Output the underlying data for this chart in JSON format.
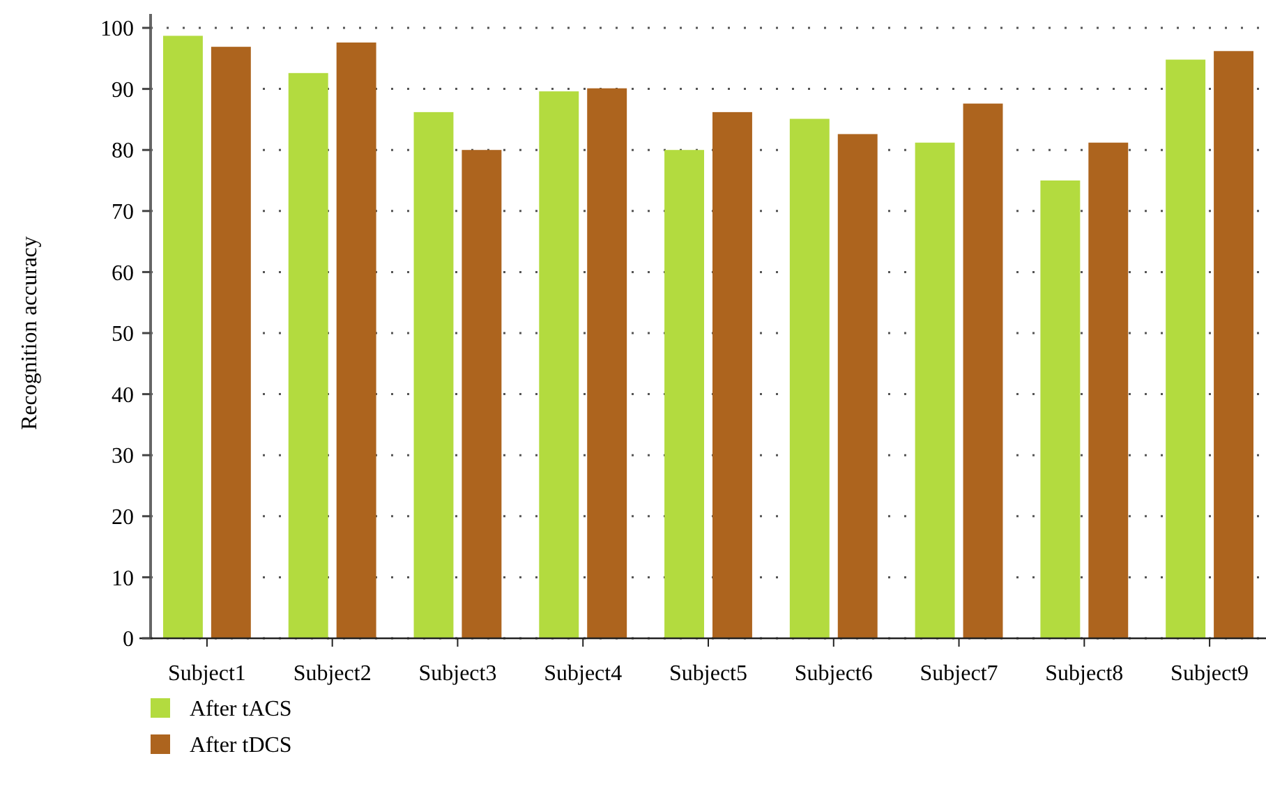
{
  "chart_data": {
    "type": "bar",
    "ylabel": "Recognition accuracy",
    "categories": [
      "Subject1",
      "Subject2",
      "Subject3",
      "Subject4",
      "Subject5",
      "Subject6",
      "Subject7",
      "Subject8",
      "Subject9"
    ],
    "series": [
      {
        "name": "After tACS",
        "color": "#b3db3f",
        "values": [
          98.7,
          92.6,
          86.2,
          89.6,
          80,
          85.1,
          81.2,
          75.0,
          94.8
        ]
      },
      {
        "name": "After tDCS",
        "color": "#ad641e",
        "values": [
          96.9,
          97.6,
          80,
          90.1,
          86.2,
          82.6,
          87.6,
          81.2,
          96.2
        ]
      }
    ],
    "ylim": [
      0,
      100
    ],
    "yticks": [
      0,
      10,
      20,
      30,
      40,
      50,
      60,
      70,
      80,
      90,
      100
    ],
    "grid": "y",
    "legend": "bottom left"
  }
}
